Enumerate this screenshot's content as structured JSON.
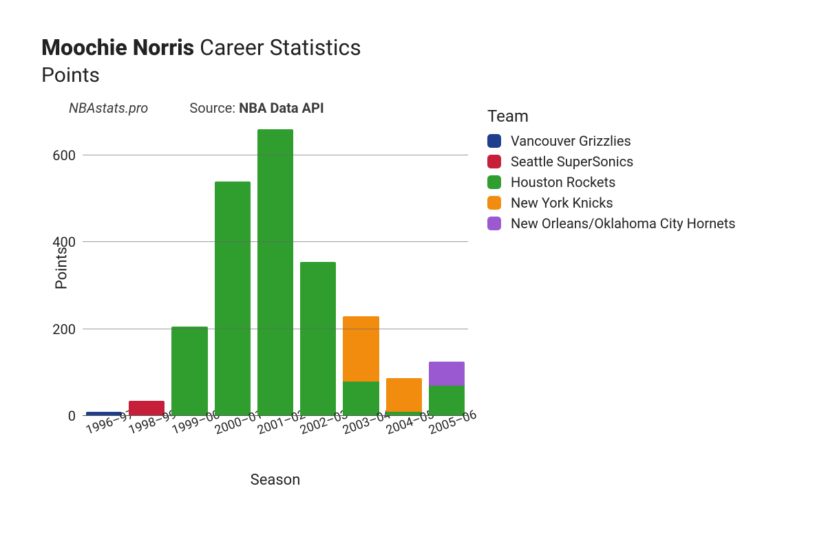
{
  "title": {
    "bold": "Moochie Norris",
    "light": "Career Statistics"
  },
  "subtitle": "Points",
  "credits": {
    "site": "NBAstats.pro",
    "source_prefix": "Source: ",
    "source_name": "NBA Data API"
  },
  "chart": {
    "type": "bar-stacked",
    "y_axis_title": "Points",
    "x_axis_title": "Season",
    "background_color": "#ffffff",
    "grid_color": "#666666",
    "tick_fontsize": 20,
    "axis_title_fontsize": 22,
    "ylim": [
      0,
      680
    ],
    "yticks": [
      0,
      200,
      400,
      600
    ],
    "categories": [
      "1996–97",
      "1998–99",
      "1999–00",
      "2000–01",
      "2001–02",
      "2002–03",
      "2003–04",
      "2004–05",
      "2005–06"
    ],
    "teams": [
      {
        "key": "vancouver",
        "name": "Vancouver Grizzlies",
        "color": "#1f3e8c"
      },
      {
        "key": "seattle",
        "name": "Seattle SuperSonics",
        "color": "#c61f3a"
      },
      {
        "key": "houston",
        "name": "Houston Rockets",
        "color": "#2f9e2f"
      },
      {
        "key": "nyk",
        "name": "New York Knicks",
        "color": "#f28c0f"
      },
      {
        "key": "noohc",
        "name": "New Orleans/Oklahoma City Hornets",
        "color": "#9b59d1"
      }
    ],
    "series": [
      {
        "season": "1996–97",
        "stack": [
          {
            "team": "vancouver",
            "value": 10
          }
        ]
      },
      {
        "season": "1998–99",
        "stack": [
          {
            "team": "seattle",
            "value": 35
          }
        ]
      },
      {
        "season": "1999–00",
        "stack": [
          {
            "team": "houston",
            "value": 207
          }
        ]
      },
      {
        "season": "2000–01",
        "stack": [
          {
            "team": "houston",
            "value": 540
          }
        ]
      },
      {
        "season": "2001–02",
        "stack": [
          {
            "team": "houston",
            "value": 660
          }
        ]
      },
      {
        "season": "2002–03",
        "stack": [
          {
            "team": "houston",
            "value": 355
          }
        ]
      },
      {
        "season": "2003–04",
        "stack": [
          {
            "team": "houston",
            "value": 80
          },
          {
            "team": "nyk",
            "value": 150
          }
        ]
      },
      {
        "season": "2004–05",
        "stack": [
          {
            "team": "houston",
            "value": 10
          },
          {
            "team": "nyk",
            "value": 78
          }
        ]
      },
      {
        "season": "2005–06",
        "stack": [
          {
            "team": "houston",
            "value": 70
          },
          {
            "team": "noohc",
            "value": 55
          }
        ]
      }
    ],
    "legend_title": "Team"
  }
}
